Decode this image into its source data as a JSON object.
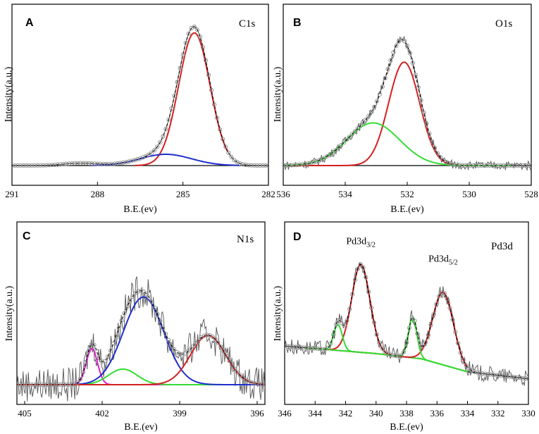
{
  "colors": {
    "raw": "#555555",
    "markers": "#8a8a8a",
    "envelope": "#000000",
    "baseline": "#000000",
    "red": "#d42020",
    "blue": "#1f2fcc",
    "green": "#33dd33",
    "magenta": "#dd22cc"
  },
  "chart_data": [
    {
      "panel": "A",
      "core": "C1s",
      "type": "line",
      "xlabel": "B.E.(ev)",
      "ylabel": "Intensity(a.u.)",
      "xlim": [
        291,
        282
      ],
      "xticks": [
        291,
        288,
        285,
        282
      ],
      "ylim": [
        0,
        1.12
      ],
      "background": 0.0,
      "noise": 0.0,
      "peaks": [
        {
          "name": "C1s main",
          "center": 284.6,
          "height": 1.0,
          "width": 0.55,
          "color": "red",
          "range": [
            286.7,
            283.4
          ]
        },
        {
          "name": "C1s shoulder",
          "center": 285.6,
          "height": 0.085,
          "width": 0.9,
          "color": "blue",
          "range": [
            288.2,
            283.0
          ]
        },
        {
          "name": "satellite",
          "center": 288.6,
          "height": 0.018,
          "width": 0.6,
          "color": "none"
        }
      ],
      "annotations": []
    },
    {
      "panel": "B",
      "core": "O1s",
      "type": "line",
      "xlabel": "B.E.(ev)",
      "ylabel": "Intensity(a.u.)",
      "xlim": [
        536,
        528
      ],
      "xticks": [
        536,
        534,
        532,
        530,
        528
      ],
      "ylim": [
        0,
        1.15
      ],
      "background": 0.0,
      "noise": 0.035,
      "peaks": [
        {
          "name": "O1s lattice",
          "center": 532.1,
          "height": 0.8,
          "width": 0.5,
          "color": "red",
          "range": [
            536.0,
            528.6
          ]
        },
        {
          "name": "O1s adsorbed",
          "center": 533.1,
          "height": 0.33,
          "width": 0.85,
          "color": "green",
          "range": [
            536.0,
            528.6
          ]
        }
      ],
      "annotations": []
    },
    {
      "panel": "C",
      "core": "N1s",
      "type": "line",
      "xlabel": "B.E.(ev)",
      "ylabel": "Intensity(a.u.)",
      "xlim": [
        405.3,
        395.7
      ],
      "xticks": [
        405,
        402,
        399,
        396
      ],
      "ylim": [
        0,
        1.25
      ],
      "background": 0.0,
      "noise": 0.14,
      "peaks": [
        {
          "name": "N1s a",
          "center": 402.4,
          "height": 0.3,
          "width": 0.22,
          "color": "magenta",
          "range": [
            405.3,
            395.7
          ]
        },
        {
          "name": "N1s b",
          "center": 401.2,
          "height": 0.13,
          "width": 0.55,
          "color": "green",
          "range": [
            405.3,
            395.7
          ]
        },
        {
          "name": "N1s c",
          "center": 400.4,
          "height": 0.73,
          "width": 0.78,
          "color": "blue",
          "range": [
            405.3,
            395.7
          ]
        },
        {
          "name": "N1s d",
          "center": 397.9,
          "height": 0.41,
          "width": 0.68,
          "color": "red",
          "range": [
            405.3,
            395.7
          ]
        }
      ],
      "annotations": []
    },
    {
      "panel": "D",
      "core": "Pd3d",
      "type": "line",
      "xlabel": "B.E.(ev)",
      "ylabel": "Intensity(a.u.)",
      "xlim": [
        346,
        330
      ],
      "xticks": [
        346,
        344,
        342,
        340,
        338,
        336,
        334,
        332,
        330
      ],
      "ylim": [
        -0.33,
        0.95
      ],
      "background": 0.0,
      "noise": 0.07,
      "baseline_points": [
        [
          346,
          0.0
        ],
        [
          340,
          -0.065
        ],
        [
          337,
          -0.11
        ],
        [
          334,
          -0.22
        ],
        [
          330,
          -0.28
        ]
      ],
      "peaks": [
        {
          "name": "Pd3d3/2 main",
          "center": 341.0,
          "height": 0.75,
          "width": 0.6,
          "color": "red",
          "range": [
            344.6,
            334.0
          ]
        },
        {
          "name": "Pd3d3/2 sat",
          "center": 342.5,
          "height": 0.22,
          "width": 0.28,
          "color": "green",
          "range": [
            344.6,
            334.0
          ]
        },
        {
          "name": "Pd3d5/2 main",
          "center": 335.6,
          "height": 0.62,
          "width": 0.68,
          "color": "red",
          "range": [
            344.6,
            334.0
          ]
        },
        {
          "name": "Pd3d5/2 sat",
          "center": 337.6,
          "height": 0.34,
          "width": 0.28,
          "color": "green",
          "range": [
            344.6,
            334.0
          ]
        }
      ],
      "annotations": [
        {
          "base": "Pd3d",
          "sub": "3/2",
          "x": 341.0,
          "y": 0.87
        },
        {
          "base": "Pd3d",
          "sub": "5/2",
          "x": 335.6,
          "y": 0.72
        }
      ]
    }
  ]
}
